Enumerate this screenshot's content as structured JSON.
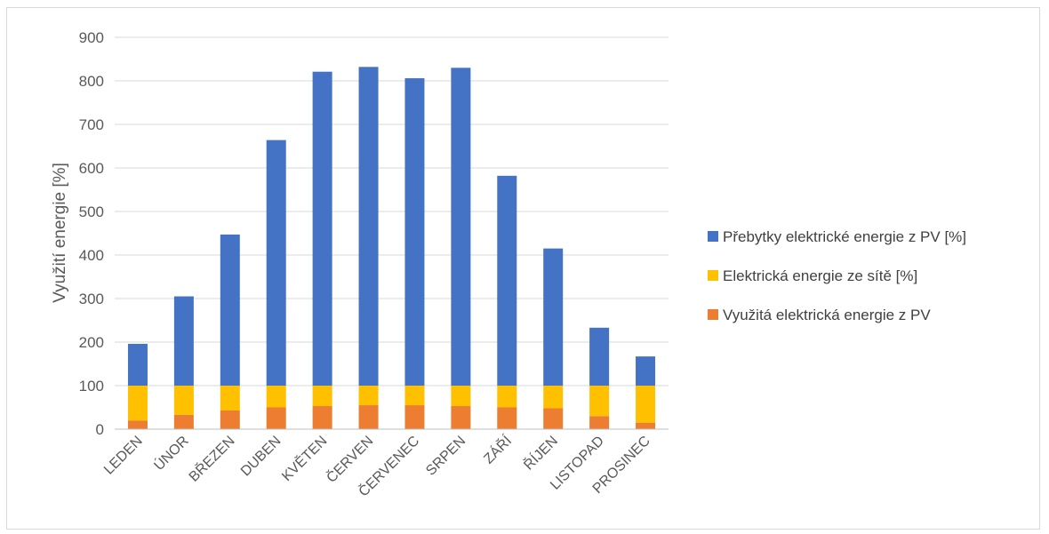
{
  "chart_data": {
    "type": "bar",
    "stacked": true,
    "title": "",
    "xlabel": "",
    "ylabel": "Využití energie [%]",
    "ylim": [
      0,
      900
    ],
    "yticks": [
      0,
      100,
      200,
      300,
      400,
      500,
      600,
      700,
      800,
      900
    ],
    "grid": true,
    "legend_position": "right",
    "categories": [
      "LEDEN",
      "ÚNOR",
      "BŘEZEN",
      "DUBEN",
      "KVĚTEN",
      "ČERVEN",
      "ČERVENEC",
      "SRPEN",
      "ZÁŘÍ",
      "ŘÍJEN",
      "LISTOPAD",
      "PROSINEC"
    ],
    "series": [
      {
        "name": "Využitá elektrická energie z PV",
        "color": "#ed7d31",
        "values": [
          20,
          33,
          43,
          50,
          53,
          55,
          55,
          53,
          50,
          48,
          30,
          15
        ]
      },
      {
        "name": "Elektrická energie ze sítě [%]",
        "color": "#ffc000",
        "values": [
          80,
          67,
          57,
          50,
          47,
          45,
          45,
          47,
          50,
          52,
          70,
          85
        ]
      },
      {
        "name": "Přebytky elektrické energie z PV [%]",
        "color": "#4472c4",
        "values": [
          96,
          205,
          347,
          564,
          721,
          732,
          706,
          730,
          482,
          315,
          133,
          67
        ]
      }
    ],
    "legend_order": [
      "Přebytky elektrické energie z PV [%]",
      "Elektrická energie ze sítě [%]",
      "Využitá elektrická energie z PV"
    ]
  }
}
